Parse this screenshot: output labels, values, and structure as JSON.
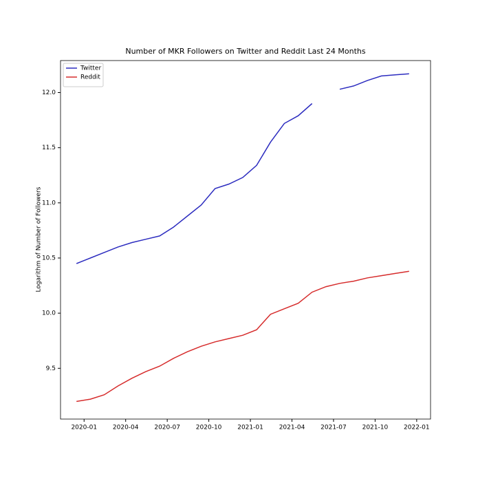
{
  "chart_data": {
    "type": "line",
    "title": "Number of MKR Followers on Twitter and Reddit Last 24 Months",
    "y_label": "Logarithm of Number of Followers",
    "x": [
      "2019-12",
      "2020-01",
      "2020-02",
      "2020-03",
      "2020-04",
      "2020-05",
      "2020-06",
      "2020-07",
      "2020-08",
      "2020-09",
      "2020-10",
      "2020-11",
      "2020-12",
      "2021-01",
      "2021-02",
      "2021-03",
      "2021-04",
      "2021-05",
      "2021-06",
      "2021-07",
      "2021-08",
      "2021-09",
      "2021-10",
      "2021-11",
      "2021-12"
    ],
    "series": [
      {
        "name": "Twitter",
        "color": "#2b2bbf",
        "values": [
          10.45,
          10.5,
          10.55,
          10.6,
          10.64,
          10.67,
          10.7,
          10.78,
          10.88,
          10.98,
          11.13,
          11.17,
          11.23,
          11.34,
          11.55,
          11.72,
          11.79,
          11.9,
          null,
          12.03,
          12.06,
          12.11,
          12.15,
          12.16,
          12.17
        ]
      },
      {
        "name": "Reddit",
        "color": "#d62b2b",
        "values": [
          9.2,
          9.22,
          9.26,
          9.34,
          9.41,
          9.47,
          9.52,
          9.59,
          9.65,
          9.7,
          9.74,
          9.77,
          9.8,
          9.85,
          9.99,
          10.04,
          10.09,
          10.19,
          10.24,
          10.27,
          10.29,
          10.32,
          10.34,
          10.36,
          10.38
        ]
      }
    ],
    "xlim": [
      "2019-11-10",
      "2022-01-31"
    ],
    "xticks": [
      "2020-01",
      "2020-04",
      "2020-07",
      "2020-10",
      "2021-01",
      "2021-04",
      "2021-07",
      "2021-10",
      "2022-01"
    ],
    "ylim": [
      9.04,
      12.29
    ],
    "yticks": [
      9.5,
      {
        "value": 10,
        "label": "10.0"
      },
      10.5,
      {
        "value": 11,
        "label": "11.0"
      },
      11.5,
      {
        "value": 12,
        "label": "12.0"
      }
    ],
    "legend": "upper left",
    "grid": false
  }
}
